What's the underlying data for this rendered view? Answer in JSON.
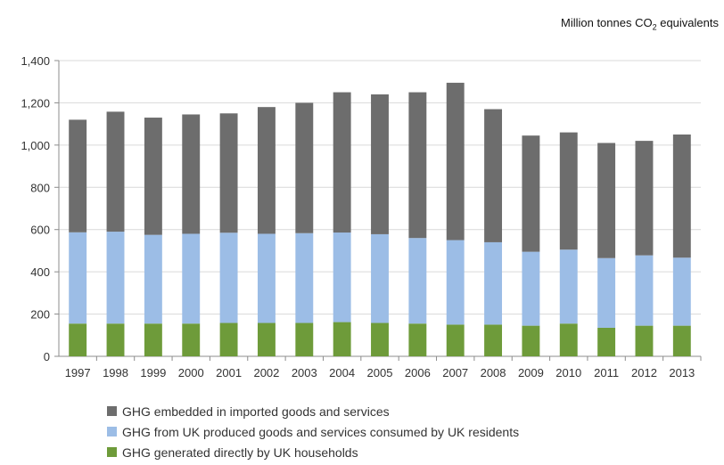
{
  "unit_label": {
    "main": "Million tonnes CO",
    "sub": "2",
    "tail": " equivalents"
  },
  "chart_data": {
    "type": "bar",
    "stacked": true,
    "title": "",
    "xlabel": "",
    "ylabel": "",
    "ylim": [
      0,
      1400
    ],
    "yticks": [
      0,
      200,
      400,
      600,
      800,
      1000,
      1200,
      1400
    ],
    "ytick_labels": [
      "0",
      "200",
      "400",
      "600",
      "800",
      "1,000",
      "1,200",
      "1,400"
    ],
    "grid": true,
    "legend_position": "bottom",
    "categories": [
      "1997",
      "1998",
      "1999",
      "2000",
      "2001",
      "2002",
      "2003",
      "2004",
      "2005",
      "2006",
      "2007",
      "2008",
      "2009",
      "2010",
      "2011",
      "2012",
      "2013"
    ],
    "series": [
      {
        "name": "GHG generated directly by UK households",
        "color": "#6e9b3a",
        "values": [
          155,
          155,
          155,
          155,
          158,
          158,
          158,
          162,
          158,
          155,
          150,
          150,
          145,
          155,
          135,
          145,
          145
        ]
      },
      {
        "name": "GHG from UK produced goods and services consumed by UK residents",
        "color": "#9cbde6",
        "values": [
          432,
          435,
          420,
          425,
          427,
          422,
          425,
          424,
          420,
          405,
          400,
          390,
          350,
          350,
          330,
          333,
          322
        ]
      },
      {
        "name": "GHG embedded in imported goods and services",
        "color": "#6d6d6d",
        "values": [
          533,
          568,
          555,
          565,
          565,
          600,
          617,
          664,
          662,
          690,
          745,
          630,
          550,
          555,
          545,
          542,
          583
        ]
      }
    ]
  },
  "legend_order": [
    2,
    1,
    0
  ]
}
